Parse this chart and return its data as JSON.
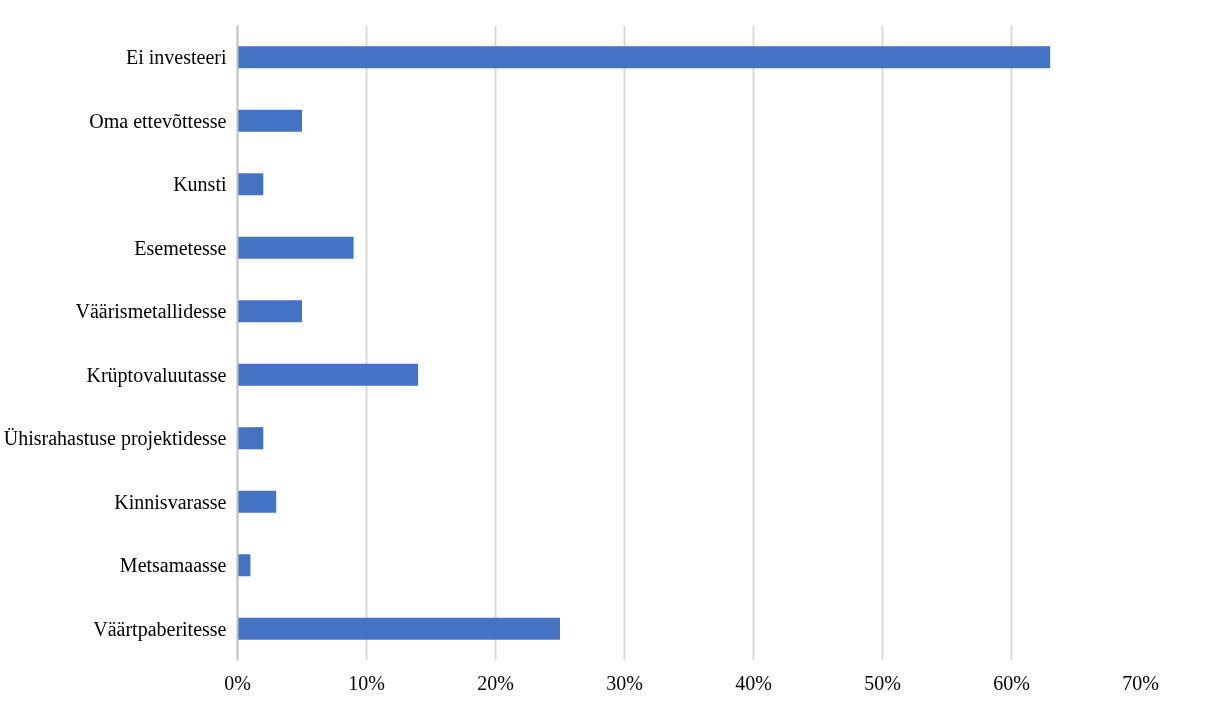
{
  "chart_data": {
    "type": "bar",
    "orientation": "horizontal",
    "categories": [
      "Ei investeeri",
      "Oma ettevõttesse",
      "Kunsti",
      "Esemetesse",
      "Väärismetallidesse",
      "Krüptovaluutasse",
      "Ühisrahastuse projektidesse",
      "Kinnisvarasse",
      "Metsamaasse",
      "Väärtpaberitesse"
    ],
    "values": [
      63,
      5,
      2,
      9,
      5,
      14,
      2,
      3,
      1,
      25
    ],
    "color": "#4472c4",
    "xlim": [
      0,
      70
    ],
    "xticks": [
      {
        "value": 0,
        "label": "0%"
      },
      {
        "value": 10,
        "label": "10%"
      },
      {
        "value": 20,
        "label": "20%"
      },
      {
        "value": 30,
        "label": "30%"
      },
      {
        "value": 40,
        "label": "40%"
      },
      {
        "value": 50,
        "label": "50%"
      },
      {
        "value": 60,
        "label": "60%"
      },
      {
        "value": 70,
        "label": "70%"
      }
    ],
    "grid": "x"
  }
}
